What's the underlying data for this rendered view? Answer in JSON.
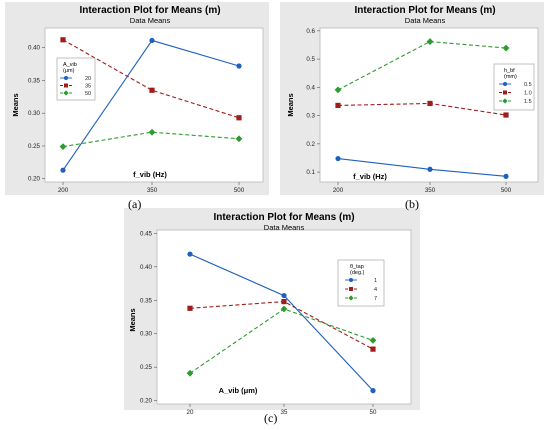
{
  "chart_data": [
    {
      "type": "line",
      "panel_label": "(a)",
      "title": "Interaction Plot for Means (m)",
      "subtitle": "Data Means",
      "xlabel": "f_vib (Hz)",
      "ylabel": "Means",
      "categories": [
        "200",
        "350",
        "500"
      ],
      "ylim": [
        0.195,
        0.43
      ],
      "yticks": [
        "0.20",
        "0.25",
        "0.30",
        "0.35",
        "0.40"
      ],
      "legend_title": [
        "A_vib",
        "(μm)"
      ],
      "legend_position": "top-left",
      "series": [
        {
          "name": "20",
          "values": [
            0.213,
            0.411,
            0.372
          ],
          "color": "#1f5fbf",
          "marker": "circle",
          "dash": "solid"
        },
        {
          "name": "35",
          "values": [
            0.412,
            0.335,
            0.293
          ],
          "color": "#a01d1d",
          "marker": "square",
          "dash": "dashed"
        },
        {
          "name": "50",
          "values": [
            0.249,
            0.271,
            0.261
          ],
          "color": "#2e9b2e",
          "marker": "diamond",
          "dash": "dashed"
        }
      ]
    },
    {
      "type": "line",
      "panel_label": "(b)",
      "title": "Interaction Plot for Means (m)",
      "subtitle": "Data Means",
      "xlabel": "f_vib (Hz)",
      "ylabel": "Means",
      "categories": [
        "200",
        "350",
        "500"
      ],
      "ylim": [
        0.065,
        0.61
      ],
      "yticks": [
        "0.1",
        "0.2",
        "0.3",
        "0.4",
        "0.5",
        "0.6"
      ],
      "legend_title": [
        "h_bf",
        "(mm)"
      ],
      "legend_position": "right",
      "series": [
        {
          "name": "0.5",
          "values": [
            0.148,
            0.11,
            0.085
          ],
          "color": "#1f5fbf",
          "marker": "circle",
          "dash": "solid"
        },
        {
          "name": "1.0",
          "values": [
            0.336,
            0.343,
            0.302
          ],
          "color": "#a01d1d",
          "marker": "square",
          "dash": "dashed"
        },
        {
          "name": "1.5",
          "values": [
            0.391,
            0.562,
            0.539
          ],
          "color": "#2e9b2e",
          "marker": "diamond",
          "dash": "dashed"
        }
      ]
    },
    {
      "type": "line",
      "panel_label": "(c)",
      "title": "Interaction Plot for Means (m)",
      "subtitle": "Data Means",
      "xlabel": "A_vib (μm)",
      "ylabel": "Means",
      "categories": [
        "20",
        "35",
        "50"
      ],
      "ylim": [
        0.195,
        0.455
      ],
      "yticks": [
        "0.20",
        "0.25",
        "0.30",
        "0.35",
        "0.40",
        "0.45"
      ],
      "legend_title": [
        "θ_tap",
        "(deg.)"
      ],
      "legend_position": "right",
      "series": [
        {
          "name": "1",
          "values": [
            0.419,
            0.357,
            0.215
          ],
          "color": "#1f5fbf",
          "marker": "circle",
          "dash": "solid"
        },
        {
          "name": "4",
          "values": [
            0.338,
            0.348,
            0.277
          ],
          "color": "#a01d1d",
          "marker": "square",
          "dash": "dashed"
        },
        {
          "name": "7",
          "values": [
            0.241,
            0.337,
            0.29
          ],
          "color": "#2e9b2e",
          "marker": "diamond",
          "dash": "dashed"
        }
      ]
    }
  ]
}
